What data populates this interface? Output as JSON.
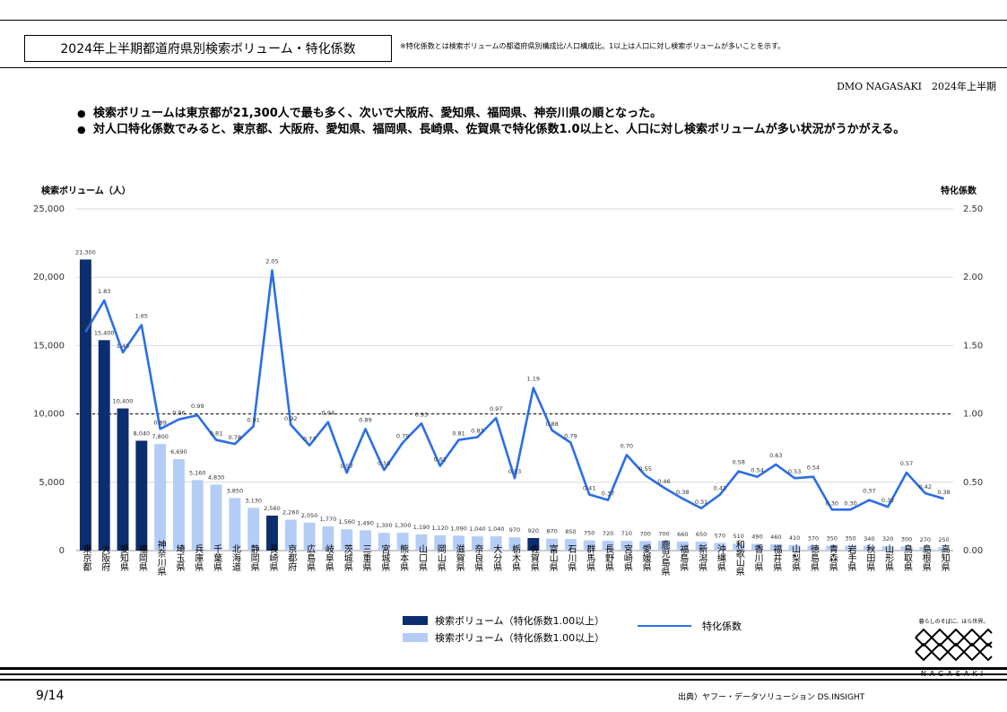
{
  "header": {
    "title": "2024年上半期都道府県別検索ボリューム・特化係数",
    "note": "※特化係数とは検索ボリュームの都道府県別構成比/人口構成比。1以上は人口に対し検索ボリュームが多いことを示す。",
    "org": "DMO NAGASAKI　2024年上半期"
  },
  "bullets": [
    "検索ボリュームは東京都が21,300人で最も多く、次いで大阪府、愛知県、福岡県、神奈川県の順となった。",
    "対人口特化係数でみると、東京都、大阪府、愛知県、福岡県、長崎県、佐賀県で特化係数1.0以上と、人口に対し検索ボリュームが多い状況がうかがえる。"
  ],
  "colors": {
    "dark_bar": "#0c2e6e",
    "light_bar": "#b4cdf7",
    "line": "#2a6ee8"
  },
  "chart_data": {
    "type": "bar",
    "ylabel_left": "検索ボリューム（人）",
    "ylabel_right": "特化係数",
    "ylim_left": [
      0,
      25000
    ],
    "ylim_right": [
      0,
      2.5
    ],
    "yticks_left": [
      "0",
      "5,000",
      "10,000",
      "15,000",
      "20,000",
      "25,000"
    ],
    "yticks_right": [
      "0.00",
      "0.50",
      "1.00",
      "1.50",
      "2.00",
      "2.50"
    ],
    "reference_line": 1.0,
    "categories": [
      "東京都",
      "大阪府",
      "愛知県",
      "福岡県",
      "神奈川県",
      "埼玉県",
      "兵庫県",
      "千葉県",
      "北海道",
      "静岡県",
      "長崎県",
      "京都府",
      "広島県",
      "岐阜県",
      "茨城県",
      "三重県",
      "宮城県",
      "熊本県",
      "山口県",
      "岡山県",
      "滋賀県",
      "奈良県",
      "大分県",
      "栃木県",
      "佐賀県",
      "富山県",
      "石川県",
      "群馬県",
      "長野県",
      "宮崎県",
      "愛媛県",
      "鹿児島県",
      "福島県",
      "新潟県",
      "沖縄県",
      "和歌山県",
      "香川県",
      "福井県",
      "山梨県",
      "徳島県",
      "青森県",
      "岩手県",
      "秋田県",
      "山形県",
      "鳥取県",
      "島根県",
      "高知県"
    ],
    "volume_labels": [
      "21,300",
      "15,400",
      "10,400",
      "8,040",
      "7,800",
      "6,690",
      "5,160",
      "4,830",
      "3,850",
      "3,130",
      "2,560",
      "2,260",
      "2,050",
      "1,770",
      "1,560",
      "1,490",
      "1,300",
      "1,300",
      "1,190",
      "1,120",
      "1,090",
      "1,040",
      "1,040",
      "970",
      "920",
      "870",
      "850",
      "750",
      "720",
      "710",
      "700",
      "700",
      "660",
      "650",
      "570",
      "510",
      "490",
      "460",
      "410",
      "370",
      "350",
      "350",
      "340",
      "320",
      "300",
      "270",
      "250"
    ],
    "series": [
      {
        "name": "検索ボリューム",
        "values": [
          21300,
          15400,
          10400,
          8040,
          7800,
          6690,
          5160,
          4830,
          3850,
          3130,
          2560,
          2260,
          2050,
          1770,
          1560,
          1490,
          1300,
          1300,
          1190,
          1120,
          1090,
          1040,
          1040,
          970,
          920,
          870,
          850,
          750,
          720,
          710,
          700,
          700,
          660,
          650,
          570,
          510,
          490,
          460,
          410,
          370,
          350,
          350,
          340,
          320,
          300,
          270,
          250
        ],
        "highlight": [
          true,
          true,
          true,
          true,
          false,
          false,
          false,
          false,
          false,
          false,
          true,
          false,
          false,
          false,
          false,
          false,
          false,
          false,
          false,
          false,
          false,
          false,
          false,
          false,
          true,
          false,
          false,
          false,
          false,
          false,
          false,
          false,
          false,
          false,
          false,
          false,
          false,
          false,
          false,
          false,
          false,
          false,
          false,
          false,
          false,
          false,
          false
        ]
      },
      {
        "name": "特化係数",
        "values": [
          1.6,
          1.83,
          1.45,
          1.65,
          0.89,
          0.96,
          0.99,
          0.81,
          0.78,
          0.91,
          2.05,
          0.92,
          0.77,
          0.94,
          0.57,
          0.89,
          0.59,
          0.79,
          0.93,
          0.62,
          0.81,
          0.83,
          0.97,
          0.53,
          1.19,
          0.88,
          0.79,
          0.41,
          0.37,
          0.7,
          0.55,
          0.46,
          0.38,
          0.31,
          0.41,
          0.58,
          0.54,
          0.63,
          0.53,
          0.54,
          0.3,
          0.3,
          0.37,
          0.32,
          0.57,
          0.42,
          0.38
        ],
        "labels": [
          "1.60",
          "1.83",
          "1.45",
          "1.65",
          "0.89",
          "0.96",
          "0.99",
          "0.81",
          "0.78",
          "0.91",
          "2.05",
          "0.92",
          "0.77",
          "0.94",
          "0.57",
          "0.89",
          "0.59",
          "0.79",
          "0.93",
          "0.62",
          "0.81",
          "0.83",
          "0.97",
          "0.53",
          "1.19",
          "0.88",
          "0.79",
          "0.41",
          "0.37",
          "0.70",
          "0.55",
          "0.46",
          "0.38",
          "0.31",
          "0.41",
          "0.58",
          "0.54",
          "0.63",
          "0.53",
          "0.54",
          "0.30",
          "0.30",
          "0.37",
          "0.32",
          "0.57",
          "0.42",
          "0.38"
        ]
      }
    ],
    "legend": [
      "検索ボリューム（特化係数1.00以上）",
      "検索ボリューム（特化係数1.00以上）",
      "特化係数"
    ]
  },
  "footer": {
    "page": "9/14",
    "source": "出典）ヤフー・データソリューション DS.INSIGHT",
    "logo_tag": "暮らしのそばに、ほら世界。",
    "logo_name": "NAGASAKI"
  }
}
